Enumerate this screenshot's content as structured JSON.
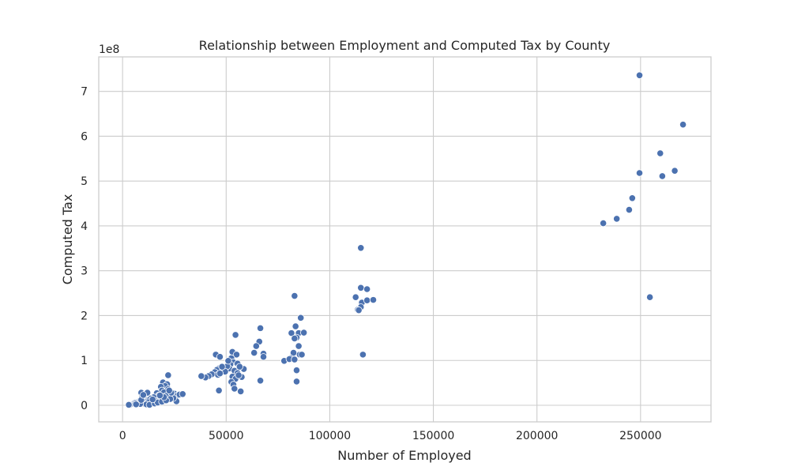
{
  "chart_data": {
    "type": "scatter",
    "title": "Relationship between Employment and Computed Tax by County",
    "xlabel": "Number of Employed",
    "ylabel": "Computed Tax",
    "y_offset_label": "1e8",
    "xlim": [
      -11500,
      284000
    ],
    "ylim": [
      -0.37,
      7.77
    ],
    "x_ticks": [
      0,
      50000,
      100000,
      150000,
      200000,
      250000
    ],
    "x_tick_labels": [
      "0",
      "50000",
      "100000",
      "150000",
      "200000",
      "250000"
    ],
    "y_ticks": [
      0,
      1,
      2,
      3,
      4,
      5,
      6,
      7
    ],
    "y_tick_labels": [
      "0",
      "1",
      "2",
      "3",
      "4",
      "5",
      "6",
      "7"
    ],
    "grid": true,
    "marker_color": "#4c72b0",
    "points": [
      [
        249500,
        7.36
      ],
      [
        270500,
        6.26
      ],
      [
        259500,
        5.62
      ],
      [
        249500,
        5.18
      ],
      [
        266500,
        5.23
      ],
      [
        260500,
        5.11
      ],
      [
        246000,
        4.62
      ],
      [
        244500,
        4.36
      ],
      [
        238500,
        4.16
      ],
      [
        232000,
        4.06
      ],
      [
        254500,
        2.41
      ],
      [
        115000,
        3.51
      ],
      [
        115000,
        2.62
      ],
      [
        118000,
        2.59
      ],
      [
        112500,
        2.41
      ],
      [
        115500,
        2.29
      ],
      [
        118000,
        2.34
      ],
      [
        121000,
        2.35
      ],
      [
        115000,
        2.19
      ],
      [
        113500,
        2.13
      ],
      [
        114000,
        2.12
      ],
      [
        116000,
        1.13
      ],
      [
        83000,
        2.44
      ],
      [
        86000,
        1.95
      ],
      [
        83500,
        1.76
      ],
      [
        81500,
        1.61
      ],
      [
        85000,
        1.61
      ],
      [
        87500,
        1.62
      ],
      [
        84000,
        1.51
      ],
      [
        83000,
        1.49
      ],
      [
        85000,
        1.32
      ],
      [
        82500,
        1.17
      ],
      [
        85500,
        1.13
      ],
      [
        81000,
        1.05
      ],
      [
        78000,
        0.99
      ],
      [
        80500,
        1.03
      ],
      [
        83000,
        1.02
      ],
      [
        84000,
        0.78
      ],
      [
        84000,
        0.53
      ],
      [
        86500,
        1.13
      ],
      [
        66500,
        1.72
      ],
      [
        66000,
        1.42
      ],
      [
        64500,
        1.32
      ],
      [
        63500,
        1.17
      ],
      [
        68000,
        1.15
      ],
      [
        68000,
        1.08
      ],
      [
        66500,
        0.55
      ],
      [
        57500,
        0.63
      ],
      [
        57000,
        0.31
      ],
      [
        58500,
        0.81
      ],
      [
        54500,
        1.57
      ],
      [
        53000,
        1.19
      ],
      [
        55000,
        1.13
      ],
      [
        52500,
        1.05
      ],
      [
        53500,
        0.96
      ],
      [
        52000,
        0.91
      ],
      [
        55500,
        0.93
      ],
      [
        51500,
        0.82
      ],
      [
        54000,
        0.77
      ],
      [
        55500,
        0.72
      ],
      [
        53000,
        0.64
      ],
      [
        54500,
        0.59
      ],
      [
        52500,
        0.52
      ],
      [
        53500,
        0.46
      ],
      [
        54000,
        0.37
      ],
      [
        56000,
        0.67
      ],
      [
        50500,
        0.87
      ],
      [
        49500,
        0.75
      ],
      [
        45000,
        1.13
      ],
      [
        47000,
        1.08
      ],
      [
        46500,
        0.82
      ],
      [
        45500,
        0.79
      ],
      [
        44500,
        0.74
      ],
      [
        46000,
        0.68
      ],
      [
        47000,
        0.71
      ],
      [
        46500,
        0.33
      ],
      [
        43000,
        0.69
      ],
      [
        41500,
        0.65
      ],
      [
        40000,
        0.62
      ],
      [
        38000,
        0.65
      ],
      [
        48000,
        0.86
      ],
      [
        56500,
        0.86
      ],
      [
        51000,
        0.99
      ],
      [
        22000,
        0.67
      ],
      [
        19500,
        0.51
      ],
      [
        21500,
        0.47
      ],
      [
        20500,
        0.43
      ],
      [
        18500,
        0.41
      ],
      [
        22000,
        0.36
      ],
      [
        19000,
        0.33
      ],
      [
        20000,
        0.29
      ],
      [
        16500,
        0.27
      ],
      [
        17500,
        0.22
      ],
      [
        21000,
        0.21
      ],
      [
        24000,
        0.19
      ],
      [
        15000,
        0.18
      ],
      [
        13500,
        0.15
      ],
      [
        12000,
        0.12
      ],
      [
        10500,
        0.21
      ],
      [
        9000,
        0.28
      ],
      [
        11000,
        0.25
      ],
      [
        9500,
        0.19
      ],
      [
        8000,
        0.09
      ],
      [
        7000,
        0.06
      ],
      [
        6000,
        0.05
      ],
      [
        5000,
        0.03
      ],
      [
        4000,
        0.02
      ],
      [
        3500,
        0.01
      ],
      [
        3000,
        0.01
      ],
      [
        25000,
        0.26
      ],
      [
        26500,
        0.22
      ],
      [
        27500,
        0.24
      ],
      [
        29000,
        0.25
      ],
      [
        26000,
        0.09
      ],
      [
        24500,
        0.16
      ],
      [
        23000,
        0.14
      ],
      [
        18000,
        0.11
      ],
      [
        16000,
        0.09
      ],
      [
        14000,
        0.05
      ],
      [
        12500,
        0.07
      ],
      [
        10000,
        0.04
      ],
      [
        11500,
        0.02
      ],
      [
        13000,
        0.01
      ],
      [
        15500,
        0.04
      ],
      [
        17000,
        0.06
      ],
      [
        19000,
        0.08
      ],
      [
        21000,
        0.11
      ],
      [
        23500,
        0.28
      ],
      [
        20000,
        0.18
      ],
      [
        22500,
        0.33
      ],
      [
        18000,
        0.22
      ],
      [
        14500,
        0.13
      ],
      [
        8500,
        0.03
      ],
      [
        6500,
        0.02
      ],
      [
        9000,
        0.12
      ],
      [
        12000,
        0.28
      ],
      [
        10000,
        0.23
      ]
    ]
  }
}
